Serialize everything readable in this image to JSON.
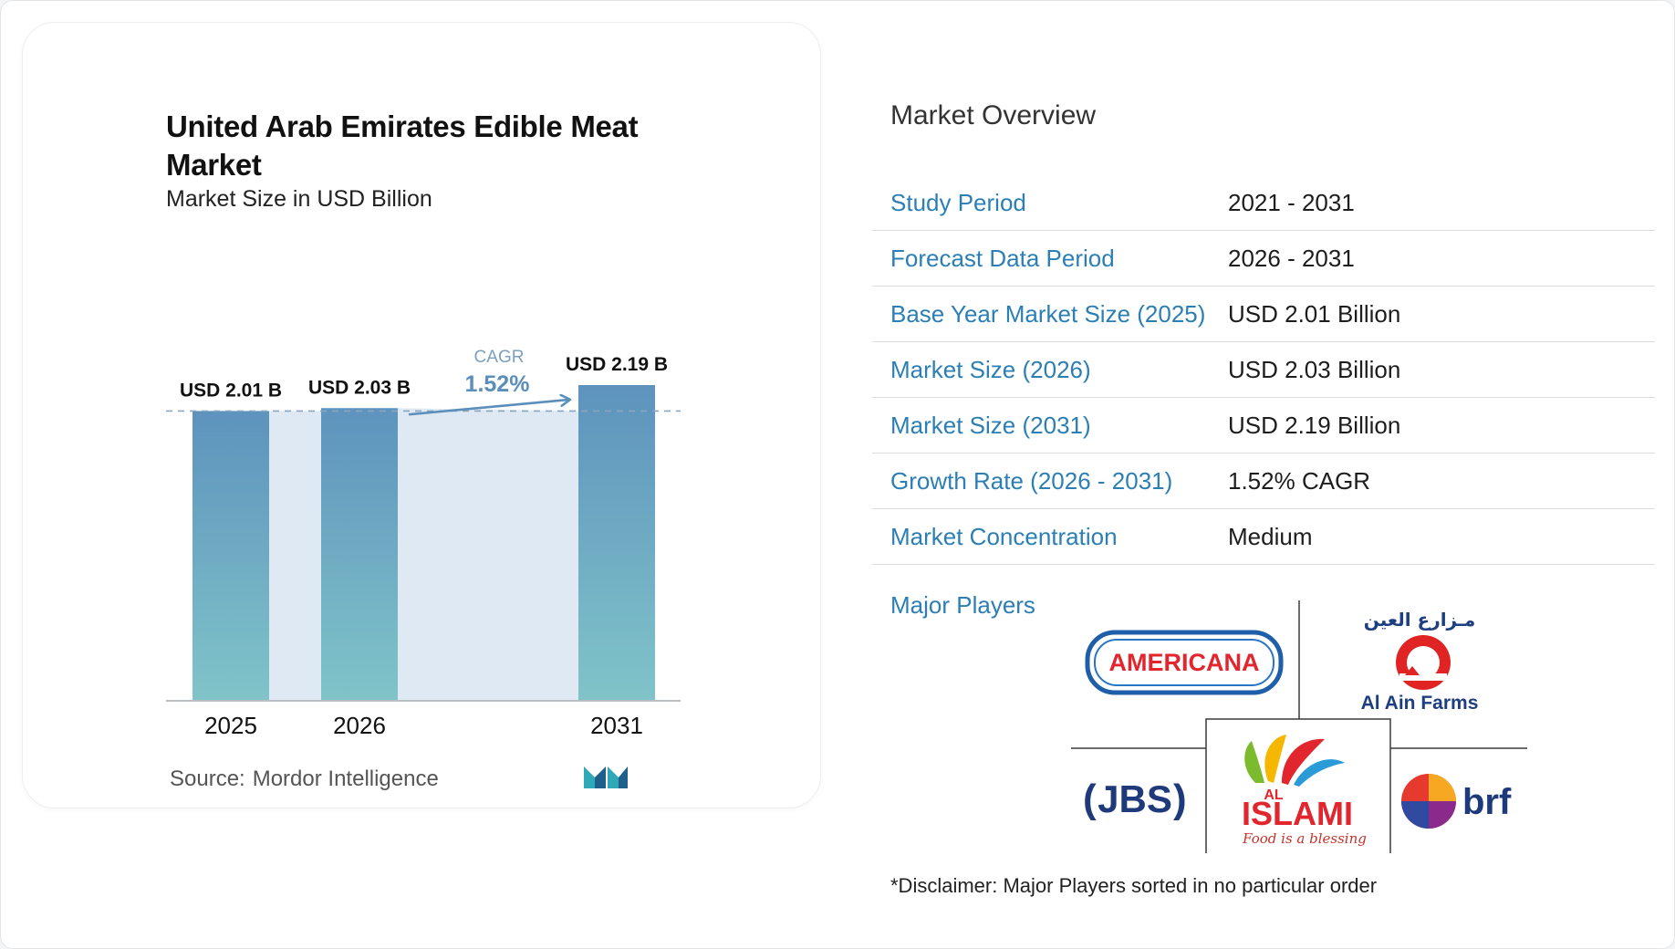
{
  "chart_title": "United Arab Emirates Edible Meat Market",
  "chart_subtitle": "Market Size in USD Billion",
  "chart_data": {
    "type": "bar",
    "categories": [
      "2025",
      "2026",
      "2031"
    ],
    "values": [
      2.01,
      2.03,
      2.19
    ],
    "value_labels": [
      "USD 2.01 B",
      "USD 2.03 B",
      "USD 2.19 B"
    ],
    "cagr_label": "CAGR",
    "cagr_value": "1.52%",
    "bar_color_top": "#5d93bd",
    "bar_color_bottom": "#80c4c9",
    "band_color": "#dfe9f3"
  },
  "source": {
    "label": "Source:",
    "name": "Mordor Intelligence"
  },
  "overview": {
    "title": "Market Overview",
    "rows": [
      {
        "label": "Study Period",
        "value": "2021 - 2031"
      },
      {
        "label": "Forecast Data Period",
        "value": "2026 - 2031"
      },
      {
        "label": "Base Year Market Size (2025)",
        "value": "USD 2.01 Billion"
      },
      {
        "label": "Market Size (2026)",
        "value": "USD 2.03 Billion"
      },
      {
        "label": "Market Size (2031)",
        "value": "USD 2.19 Billion"
      },
      {
        "label": "Growth Rate (2026 - 2031)",
        "value": "1.52% CAGR"
      },
      {
        "label": "Market Concentration",
        "value": "Medium"
      }
    ]
  },
  "players": {
    "label": "Major Players",
    "logos": {
      "americana": "AMERICANA",
      "al_ain_arabic": "مـزارع العين",
      "al_ain": "Al Ain Farms",
      "jbs": "JBS",
      "al_islami_top": "AL",
      "al_islami": "ISLAMI",
      "al_islami_tagline": "Food is a blessing",
      "brf": "brf"
    }
  },
  "disclaimer": "*Disclaimer: Major Players sorted in no particular order",
  "colors": {
    "accent_blue": "#2b7fb5",
    "cagr_color": "#5b8fbb"
  }
}
